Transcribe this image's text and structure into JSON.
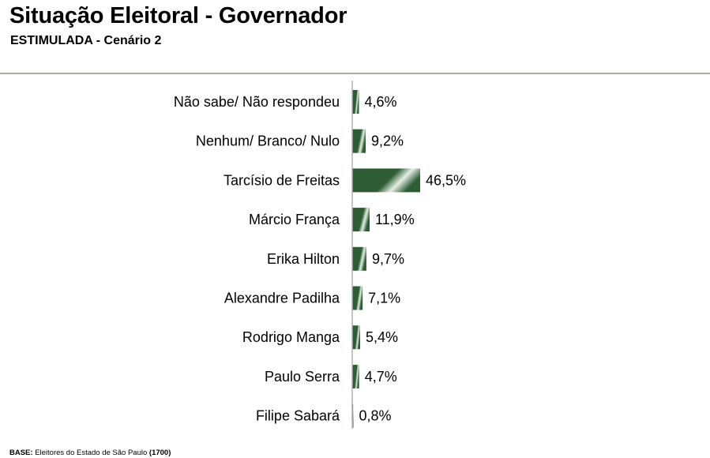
{
  "header": {
    "title": "Situação Eleitoral - Governador",
    "subtitle": "ESTIMULADA - Cenário 2"
  },
  "footer": {
    "base_label": "BASE:",
    "base_text": " Eleitores do Estado de São Paulo ",
    "base_n": "(1700)"
  },
  "colors": {
    "bar_dark": "#2e5c35",
    "bar_light": "#e6efe6",
    "axis": "#b0b0b0"
  },
  "chart_data": {
    "type": "bar",
    "orientation": "horizontal",
    "categories": [
      "Não sabe/ Não respondeu",
      "Nenhum/ Branco/ Nulo",
      "Tarcísio de Freitas",
      "Márcio França",
      "Erika Hilton",
      "Alexandre Padilha",
      "Rodrigo Manga",
      "Paulo Serra",
      "Filipe Sabará"
    ],
    "values": [
      4.6,
      9.2,
      46.5,
      11.9,
      9.7,
      7.1,
      5.4,
      4.7,
      0.8
    ],
    "value_labels": [
      "4,6%",
      "9,2%",
      "46,5%",
      "11,9%",
      "9,7%",
      "7,1%",
      "5,4%",
      "4,7%",
      "0,8%"
    ],
    "title": "Situação Eleitoral - Governador",
    "subtitle": "ESTIMULADA - Cenário 2",
    "grid": false,
    "legend": "none"
  }
}
